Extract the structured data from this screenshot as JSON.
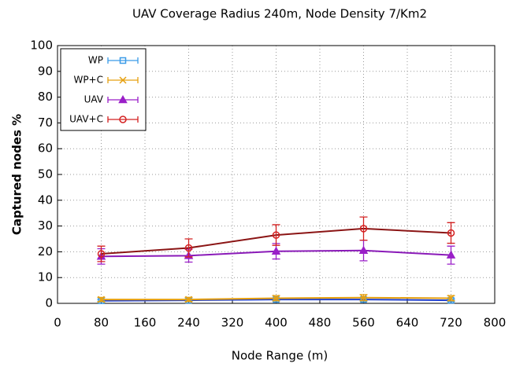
{
  "chart_data": {
    "type": "line",
    "title": "UAV Coverage Radius 240m, Node Density 7/Km2",
    "xlabel": "Node Range (m)",
    "ylabel": "Captured nodes %",
    "x": [
      80,
      240,
      400,
      560,
      720
    ],
    "xlim": [
      0,
      800
    ],
    "xticks": [
      0,
      80,
      160,
      240,
      320,
      400,
      480,
      560,
      640,
      720,
      800
    ],
    "ylim": [
      0,
      100
    ],
    "yticks": [
      0,
      10,
      20,
      30,
      40,
      50,
      60,
      70,
      80,
      90,
      100
    ],
    "grid": true,
    "legend": "upper left",
    "series": [
      {
        "name": "WP",
        "color": "#3a9be8",
        "line_color": "#1f3fcf",
        "marker": "square",
        "values": [
          1,
          1.2,
          1.5,
          1.5,
          1.2
        ],
        "errors": [
          0.5,
          0.5,
          0.6,
          0.6,
          0.5
        ]
      },
      {
        "name": "WP+C",
        "color": "#e6a010",
        "line_color": "#e6a010",
        "marker": "x",
        "values": [
          1.5,
          1.5,
          2,
          2.2,
          2
        ],
        "errors": [
          0.8,
          0.8,
          1,
          1.2,
          1
        ]
      },
      {
        "name": "UAV",
        "color": "#9a1fc8",
        "line_color": "#8a1ab8",
        "marker": "triangle",
        "values": [
          18.2,
          18.5,
          20.2,
          20.5,
          18.7
        ],
        "errors": [
          3,
          2.5,
          3,
          4,
          3.5
        ]
      },
      {
        "name": "UAV+C",
        "color": "#d42020",
        "line_color": "#8b1515",
        "marker": "circle",
        "values": [
          19.2,
          21.5,
          26.5,
          29,
          27.3
        ],
        "errors": [
          3,
          3.5,
          4,
          4.5,
          4
        ]
      }
    ]
  }
}
